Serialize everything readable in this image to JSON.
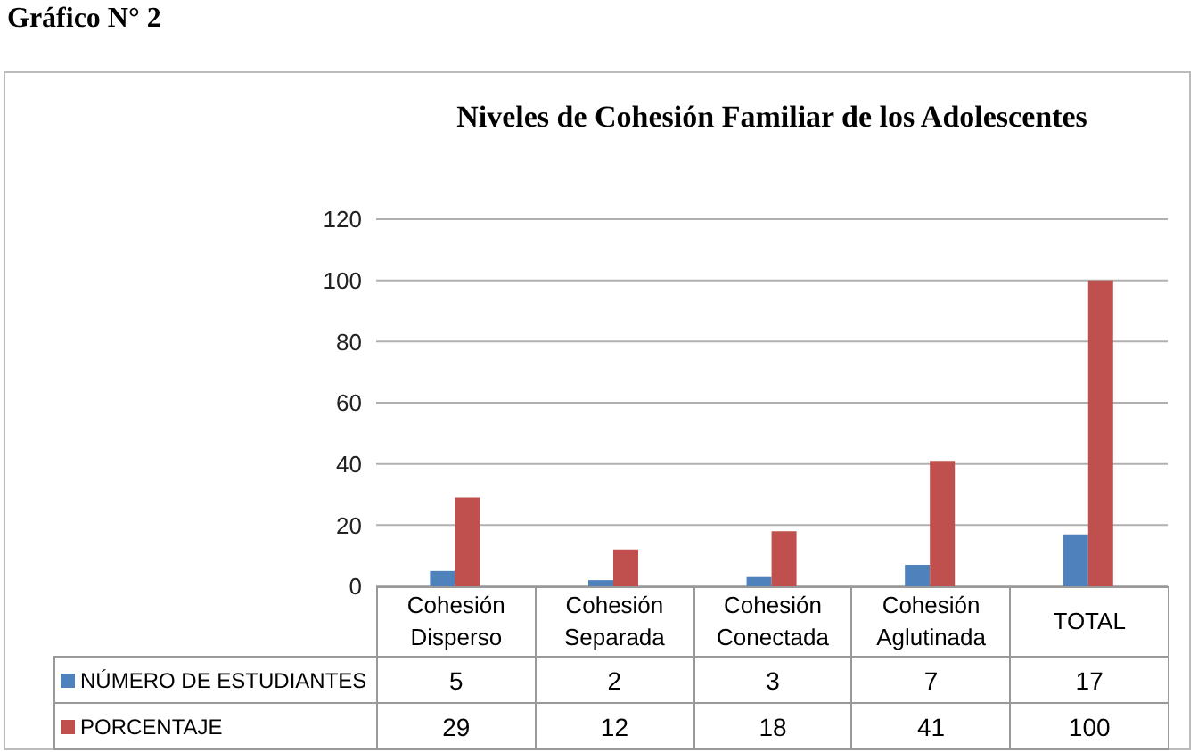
{
  "chart_data": {
    "type": "bar",
    "title": "Niveles de Cohesión Familiar de los Adolescentes",
    "annotations": [
      "Gráfico N° 2"
    ],
    "categories": [
      "Cohesión Disperso",
      "Cohesión Separada",
      "Cohesión Conectada",
      "Cohesión Aglutinada",
      "TOTAL"
    ],
    "series": [
      {
        "name": "NÚMERO DE ESTUDIANTES",
        "color": "#4f81bd",
        "values": [
          5,
          2,
          3,
          7,
          17
        ]
      },
      {
        "name": "PORCENTAJE",
        "color": "#c0504d",
        "values": [
          29,
          12,
          18,
          41,
          100
        ]
      }
    ],
    "ylim": [
      0,
      120
    ],
    "yticks": [
      0,
      20,
      40,
      60,
      80,
      100,
      120
    ],
    "grid": "y",
    "legend": "bottom",
    "data_labels": true
  }
}
